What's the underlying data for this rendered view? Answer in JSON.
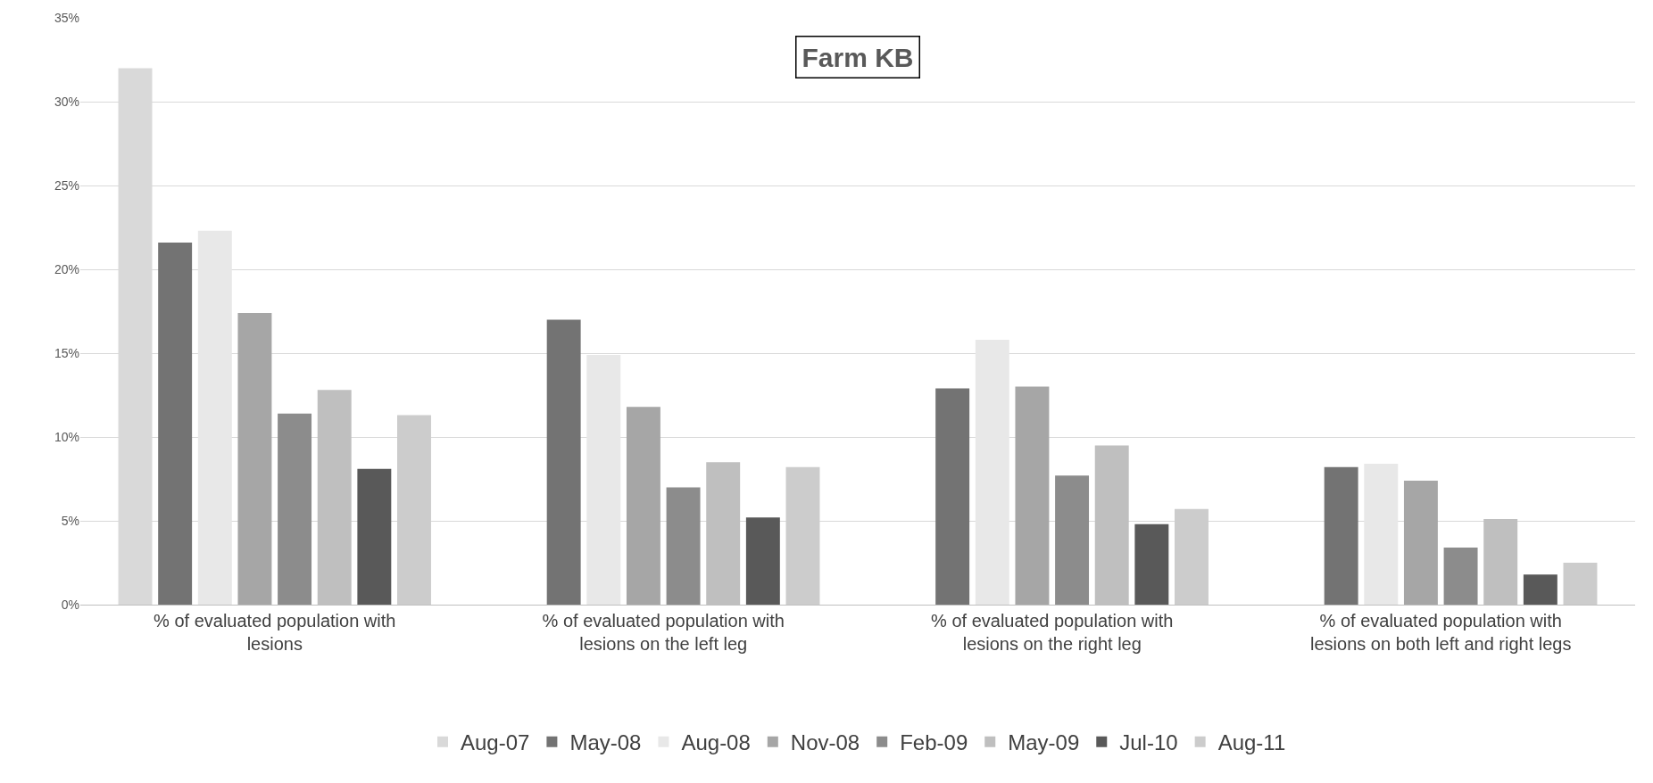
{
  "chart_data": {
    "type": "bar",
    "title": "Farm KB",
    "categories": [
      "% of evaluated population with lesions",
      "% of evaluated population with lesions on the left leg",
      "% of evaluated population with lesions on the right leg",
      "% of evaluated population with lesions on both left and right legs"
    ],
    "series": [
      {
        "name": "Aug-07",
        "color": "#d9d9d9",
        "values": [
          32.0,
          null,
          null,
          null
        ]
      },
      {
        "name": "May-08",
        "color": "#737373",
        "values": [
          21.6,
          17.0,
          12.9,
          8.2
        ]
      },
      {
        "name": "Aug-08",
        "color": "#e8e8e8",
        "values": [
          22.3,
          14.9,
          15.8,
          8.4
        ]
      },
      {
        "name": "Nov-08",
        "color": "#a6a6a6",
        "values": [
          17.4,
          11.8,
          13.0,
          7.4
        ]
      },
      {
        "name": "Feb-09",
        "color": "#8c8c8c",
        "values": [
          11.4,
          7.0,
          7.7,
          3.4
        ]
      },
      {
        "name": "May-09",
        "color": "#bfbfbf",
        "values": [
          12.8,
          8.5,
          9.5,
          5.1
        ]
      },
      {
        "name": "Jul-10",
        "color": "#595959",
        "values": [
          8.1,
          5.2,
          4.8,
          1.8
        ]
      },
      {
        "name": "Aug-11",
        "color": "#cccccc",
        "values": [
          11.3,
          8.2,
          5.7,
          2.5
        ]
      }
    ],
    "ylim": [
      0,
      35
    ],
    "yticks": [
      {
        "value": 0,
        "label": "0%"
      },
      {
        "value": 5,
        "label": "5%"
      },
      {
        "value": 10,
        "label": "10%"
      },
      {
        "value": 15,
        "label": "15%"
      },
      {
        "value": 20,
        "label": "20%"
      },
      {
        "value": 25,
        "label": "25%"
      },
      {
        "value": 30,
        "label": "30%"
      },
      {
        "value": 35,
        "label": "35%"
      }
    ],
    "grid": "y",
    "legend": "bottom"
  }
}
